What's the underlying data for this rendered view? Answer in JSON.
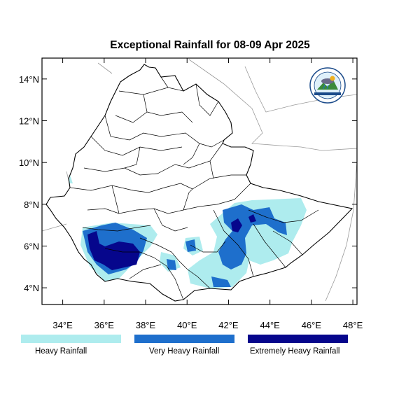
{
  "title": "Exceptional Rainfall for 08-09 Apr 2025",
  "map": {
    "lon_range": [
      33,
      48.2
    ],
    "lat_range": [
      3.2,
      15
    ],
    "lat_ticks": [
      {
        "value": 4,
        "label": "4°N"
      },
      {
        "value": 6,
        "label": "6°N"
      },
      {
        "value": 8,
        "label": "8°N"
      },
      {
        "value": 10,
        "label": "10°N"
      },
      {
        "value": 12,
        "label": "12°N"
      },
      {
        "value": 14,
        "label": "14°N"
      }
    ],
    "lon_ticks": [
      {
        "value": 34,
        "label": "34°E"
      },
      {
        "value": 36,
        "label": "36°E"
      },
      {
        "value": 38,
        "label": "38°E"
      },
      {
        "value": 40,
        "label": "40°E"
      },
      {
        "value": 42,
        "label": "42°E"
      },
      {
        "value": 44,
        "label": "44°E"
      },
      {
        "value": 46,
        "label": "46°E"
      },
      {
        "value": 48,
        "label": "48°E"
      }
    ],
    "colors": {
      "heavy": "#aeecee",
      "very_heavy": "#1e6fcc",
      "extremely_heavy": "#06068c",
      "boundary": "#000000",
      "neighbor_boundary": "#9a9a9a"
    }
  },
  "legend": [
    {
      "label": "Heavy Rainfall",
      "color": "#aeecee"
    },
    {
      "label": "Very Heavy Rainfall",
      "color": "#1e6fcc"
    },
    {
      "label": "Extremely Heavy Rainfall",
      "color": "#06068c"
    }
  ],
  "logo": {
    "icon": "meteorology-agency-logo"
  }
}
